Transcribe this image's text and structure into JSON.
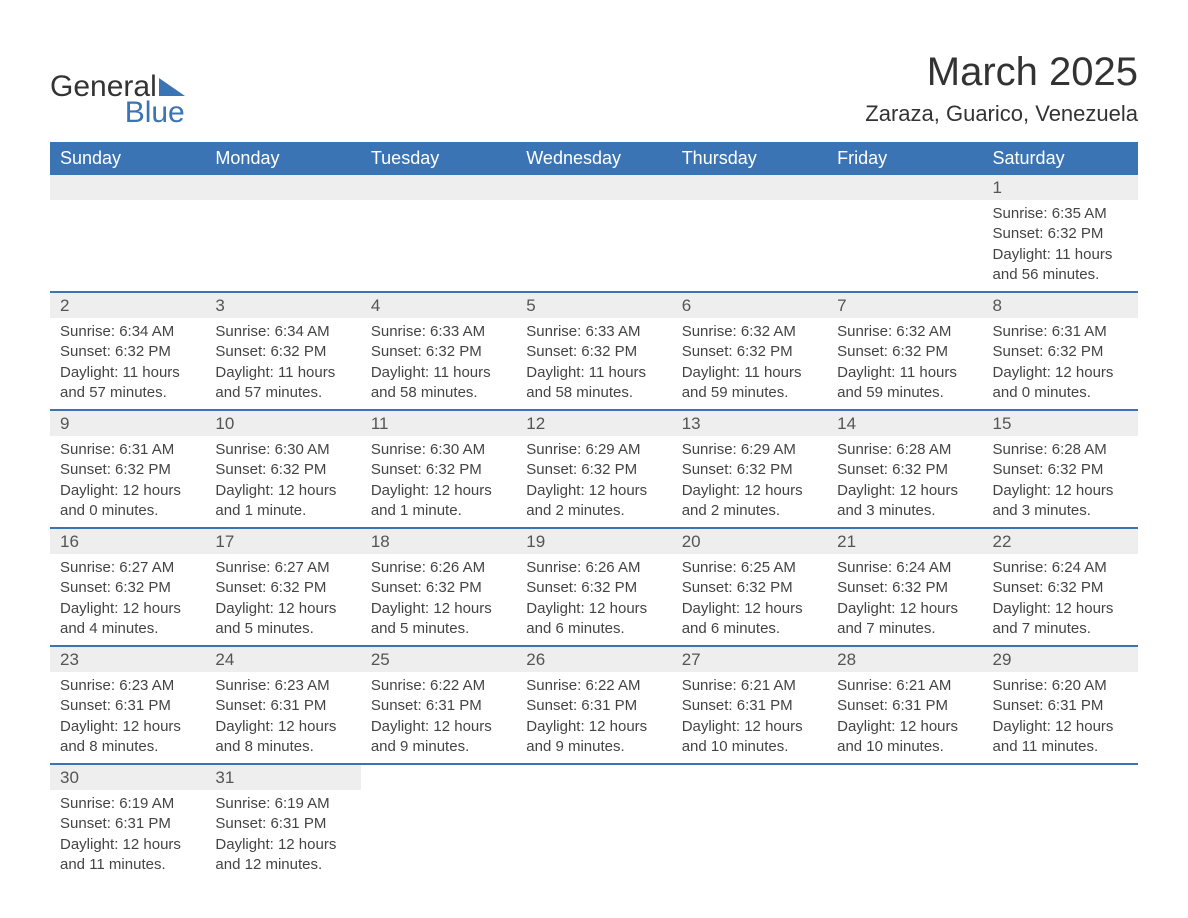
{
  "logo": {
    "text1": "General",
    "text2": "Blue"
  },
  "title": "March 2025",
  "location": "Zaraza, Guarico, Venezuela",
  "colors": {
    "header_bg": "#3b74b5",
    "header_text": "#ffffff",
    "daynum_bg": "#eeeeee",
    "row_border": "#3b74b5",
    "body_text": "#444444",
    "title_text": "#333333"
  },
  "fonts": {
    "title_size_pt": 30,
    "location_size_pt": 16,
    "header_size_pt": 13,
    "daynum_size_pt": 13,
    "detail_size_pt": 11
  },
  "day_headers": [
    "Sunday",
    "Monday",
    "Tuesday",
    "Wednesday",
    "Thursday",
    "Friday",
    "Saturday"
  ],
  "weeks": [
    [
      null,
      null,
      null,
      null,
      null,
      null,
      {
        "n": "1",
        "sunrise": "6:35 AM",
        "sunset": "6:32 PM",
        "daylight": "11 hours and 56 minutes."
      }
    ],
    [
      {
        "n": "2",
        "sunrise": "6:34 AM",
        "sunset": "6:32 PM",
        "daylight": "11 hours and 57 minutes."
      },
      {
        "n": "3",
        "sunrise": "6:34 AM",
        "sunset": "6:32 PM",
        "daylight": "11 hours and 57 minutes."
      },
      {
        "n": "4",
        "sunrise": "6:33 AM",
        "sunset": "6:32 PM",
        "daylight": "11 hours and 58 minutes."
      },
      {
        "n": "5",
        "sunrise": "6:33 AM",
        "sunset": "6:32 PM",
        "daylight": "11 hours and 58 minutes."
      },
      {
        "n": "6",
        "sunrise": "6:32 AM",
        "sunset": "6:32 PM",
        "daylight": "11 hours and 59 minutes."
      },
      {
        "n": "7",
        "sunrise": "6:32 AM",
        "sunset": "6:32 PM",
        "daylight": "11 hours and 59 minutes."
      },
      {
        "n": "8",
        "sunrise": "6:31 AM",
        "sunset": "6:32 PM",
        "daylight": "12 hours and 0 minutes."
      }
    ],
    [
      {
        "n": "9",
        "sunrise": "6:31 AM",
        "sunset": "6:32 PM",
        "daylight": "12 hours and 0 minutes."
      },
      {
        "n": "10",
        "sunrise": "6:30 AM",
        "sunset": "6:32 PM",
        "daylight": "12 hours and 1 minute."
      },
      {
        "n": "11",
        "sunrise": "6:30 AM",
        "sunset": "6:32 PM",
        "daylight": "12 hours and 1 minute."
      },
      {
        "n": "12",
        "sunrise": "6:29 AM",
        "sunset": "6:32 PM",
        "daylight": "12 hours and 2 minutes."
      },
      {
        "n": "13",
        "sunrise": "6:29 AM",
        "sunset": "6:32 PM",
        "daylight": "12 hours and 2 minutes."
      },
      {
        "n": "14",
        "sunrise": "6:28 AM",
        "sunset": "6:32 PM",
        "daylight": "12 hours and 3 minutes."
      },
      {
        "n": "15",
        "sunrise": "6:28 AM",
        "sunset": "6:32 PM",
        "daylight": "12 hours and 3 minutes."
      }
    ],
    [
      {
        "n": "16",
        "sunrise": "6:27 AM",
        "sunset": "6:32 PM",
        "daylight": "12 hours and 4 minutes."
      },
      {
        "n": "17",
        "sunrise": "6:27 AM",
        "sunset": "6:32 PM",
        "daylight": "12 hours and 5 minutes."
      },
      {
        "n": "18",
        "sunrise": "6:26 AM",
        "sunset": "6:32 PM",
        "daylight": "12 hours and 5 minutes."
      },
      {
        "n": "19",
        "sunrise": "6:26 AM",
        "sunset": "6:32 PM",
        "daylight": "12 hours and 6 minutes."
      },
      {
        "n": "20",
        "sunrise": "6:25 AM",
        "sunset": "6:32 PM",
        "daylight": "12 hours and 6 minutes."
      },
      {
        "n": "21",
        "sunrise": "6:24 AM",
        "sunset": "6:32 PM",
        "daylight": "12 hours and 7 minutes."
      },
      {
        "n": "22",
        "sunrise": "6:24 AM",
        "sunset": "6:32 PM",
        "daylight": "12 hours and 7 minutes."
      }
    ],
    [
      {
        "n": "23",
        "sunrise": "6:23 AM",
        "sunset": "6:31 PM",
        "daylight": "12 hours and 8 minutes."
      },
      {
        "n": "24",
        "sunrise": "6:23 AM",
        "sunset": "6:31 PM",
        "daylight": "12 hours and 8 minutes."
      },
      {
        "n": "25",
        "sunrise": "6:22 AM",
        "sunset": "6:31 PM",
        "daylight": "12 hours and 9 minutes."
      },
      {
        "n": "26",
        "sunrise": "6:22 AM",
        "sunset": "6:31 PM",
        "daylight": "12 hours and 9 minutes."
      },
      {
        "n": "27",
        "sunrise": "6:21 AM",
        "sunset": "6:31 PM",
        "daylight": "12 hours and 10 minutes."
      },
      {
        "n": "28",
        "sunrise": "6:21 AM",
        "sunset": "6:31 PM",
        "daylight": "12 hours and 10 minutes."
      },
      {
        "n": "29",
        "sunrise": "6:20 AM",
        "sunset": "6:31 PM",
        "daylight": "12 hours and 11 minutes."
      }
    ],
    [
      {
        "n": "30",
        "sunrise": "6:19 AM",
        "sunset": "6:31 PM",
        "daylight": "12 hours and 11 minutes."
      },
      {
        "n": "31",
        "sunrise": "6:19 AM",
        "sunset": "6:31 PM",
        "daylight": "12 hours and 12 minutes."
      },
      null,
      null,
      null,
      null,
      null
    ]
  ],
  "labels": {
    "sunrise": "Sunrise: ",
    "sunset": "Sunset: ",
    "daylight": "Daylight: "
  }
}
